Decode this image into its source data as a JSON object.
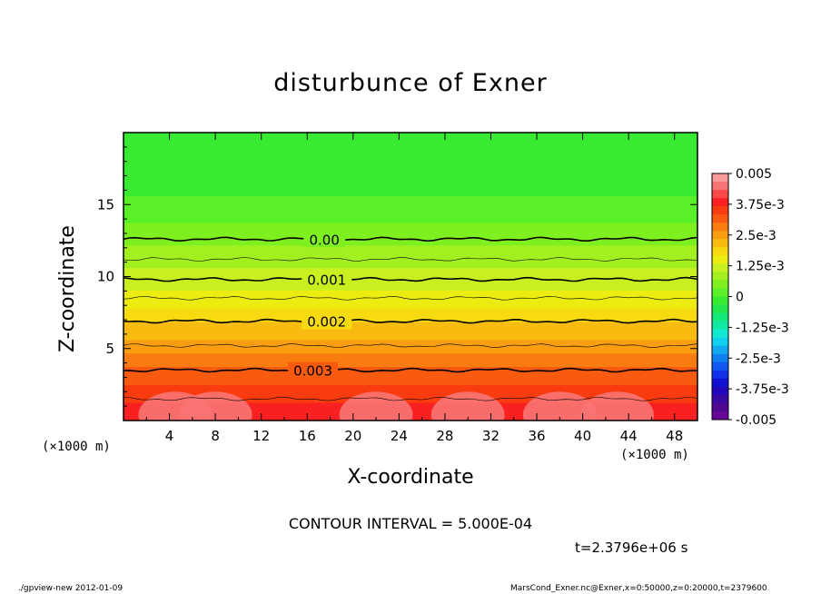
{
  "chart_data": {
    "type": "heatmap",
    "title": "disturbunce of Exner",
    "xlabel": "X-coordinate",
    "ylabel": "Z-coordinate",
    "x_unit": "(×1000 m)",
    "y_unit": "(×1000 m)",
    "xlim": [
      0,
      50
    ],
    "ylim": [
      0,
      20
    ],
    "x_ticks": [
      4,
      8,
      12,
      16,
      20,
      24,
      28,
      32,
      36,
      40,
      44,
      48
    ],
    "y_ticks": [
      5,
      10,
      15
    ],
    "contour_interval_label": "CONTOUR INTERVAL = 5.000E-04",
    "time_label": "t=2.3796e+06 s",
    "contour_labels": [
      {
        "text": "0.00",
        "x": 17.5,
        "z": 12.6
      },
      {
        "text": "0.001",
        "x": 17.7,
        "z": 9.8
      },
      {
        "text": "0.002",
        "x": 17.7,
        "z": 6.9
      },
      {
        "text": "0.003",
        "x": 16.5,
        "z": 3.5
      }
    ],
    "colorbar": {
      "min": -0.005,
      "max": 0.005,
      "tick_labels": [
        "0.005",
        "3.75e-3",
        "2.5e-3",
        "1.25e-3",
        "0",
        "-1.25e-3",
        "-2.5e-3",
        "-3.75e-3",
        "-0.005"
      ],
      "colors": [
        "#fa9a9a",
        "#f87474",
        "#f84848",
        "#f82020",
        "#f83c10",
        "#f85a10",
        "#f87c10",
        "#f89e10",
        "#f8bc10",
        "#f8da10",
        "#ecec10",
        "#c8f020",
        "#a2f020",
        "#7ef020",
        "#5af028",
        "#38ea30",
        "#22e650",
        "#14e878",
        "#10e8a4",
        "#10e8d0",
        "#10d0f0",
        "#10a8f0",
        "#1080f0",
        "#1058f0",
        "#1030e8",
        "#1010d0",
        "#2008b8",
        "#3808a0",
        "#500890",
        "#680898"
      ]
    },
    "field_levels": [
      {
        "z": 20,
        "value": -0.0001
      },
      {
        "z": 16.5,
        "value": -0.0001
      },
      {
        "z": 14.5,
        "value": 0.0001
      },
      {
        "z": 12.6,
        "value": 0.0006
      },
      {
        "z": 11.2,
        "value": 0.0009
      },
      {
        "z": 9.8,
        "value": 0.0011
      },
      {
        "z": 8.5,
        "value": 0.0015
      },
      {
        "z": 6.9,
        "value": 0.002
      },
      {
        "z": 5.2,
        "value": 0.0025
      },
      {
        "z": 3.5,
        "value": 0.0031
      },
      {
        "z": 1.5,
        "value": 0.0036
      },
      {
        "z": 0,
        "value": 0.004
      }
    ]
  },
  "footer": {
    "left": "./gpview-new   2012-01-09",
    "right": "MarsCond_Exner.nc@Exner,x=0:50000,z=0:20000,t=2379600"
  }
}
